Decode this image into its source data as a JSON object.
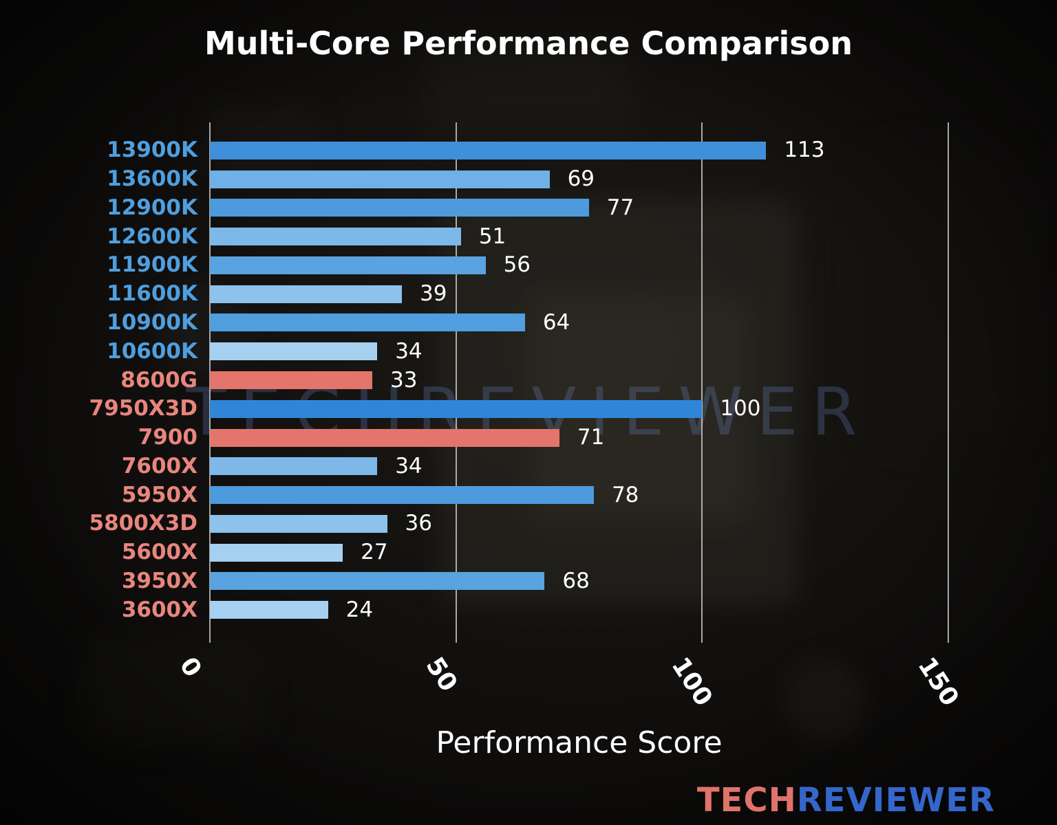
{
  "page": {
    "watermark": "TECHREVIEWER",
    "logo": {
      "part1": "TECH",
      "part2": "REVIEWER",
      "part1_color": "#e0736b",
      "part2_color": "#3566cc"
    }
  },
  "chart_data": {
    "type": "bar",
    "orientation": "horizontal",
    "title": "Multi-Core Performance Comparison",
    "xlabel": "Performance Score",
    "xlim": [
      0,
      150
    ],
    "xticks": [
      0,
      50,
      100,
      150
    ],
    "grid": true,
    "legend": false,
    "categories": [
      "13900K",
      "13600K",
      "12900K",
      "12600K",
      "11900K",
      "11600K",
      "10900K",
      "10600K",
      "8600G",
      "7950X3D",
      "7900",
      "7600X",
      "5950X",
      "5800X3D",
      "5600X",
      "3950X",
      "3600X"
    ],
    "values": [
      113,
      69,
      77,
      51,
      56,
      39,
      64,
      34,
      33,
      100,
      71,
      34,
      78,
      36,
      27,
      68,
      24
    ],
    "bar_colors": [
      "#3f8fd9",
      "#6fb0e6",
      "#4d9adc",
      "#7db8e8",
      "#58a3e0",
      "#8cc2ec",
      "#509edd",
      "#a6d0f0",
      "#e4756c",
      "#2f86d8",
      "#e4756c",
      "#7db8e8",
      "#4d9adc",
      "#8cc2ec",
      "#a6d0f0",
      "#58a3e0",
      "#a6d0f0"
    ],
    "label_colors": [
      "#4f9fdf",
      "#4f9fdf",
      "#4f9fdf",
      "#4f9fdf",
      "#4f9fdf",
      "#4f9fdf",
      "#4f9fdf",
      "#4f9fdf",
      "#e8867e",
      "#e8867e",
      "#e8867e",
      "#e8867e",
      "#e8867e",
      "#e8867e",
      "#e8867e",
      "#e8867e",
      "#e8867e"
    ],
    "value_label_color": "#ffffff",
    "gridline_color": "#dcdcdc"
  }
}
